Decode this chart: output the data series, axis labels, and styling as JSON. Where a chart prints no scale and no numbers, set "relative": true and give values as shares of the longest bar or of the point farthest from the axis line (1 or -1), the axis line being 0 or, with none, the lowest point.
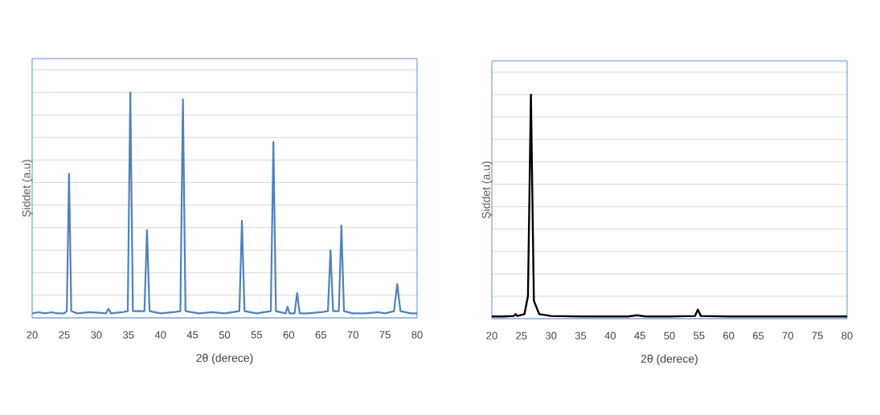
{
  "chart_data": [
    {
      "type": "line",
      "relative": true,
      "xlabel": "2θ  (derece)",
      "ylabel": "Şiddet (a.u)",
      "xlim": [
        20,
        80
      ],
      "xticks": [
        20,
        25,
        30,
        35,
        40,
        45,
        50,
        55,
        60,
        65,
        70,
        75,
        80
      ],
      "grid": "y",
      "tick_labels": "x",
      "x": [
        20,
        21,
        22,
        23,
        24,
        25,
        25.4,
        25.75,
        26.1,
        27,
        29,
        31.5,
        31.9,
        32.3,
        34,
        34.9,
        35.3,
        35.7,
        37.5,
        37.9,
        38.3,
        40,
        42,
        43.1,
        43.5,
        43.9,
        46,
        48,
        50,
        52.3,
        52.7,
        53.1,
        55,
        57.2,
        57.6,
        58,
        59.5,
        59.8,
        60.1,
        60.9,
        61.3,
        61.7,
        63,
        65,
        66.1,
        66.5,
        66.9,
        67.8,
        68.2,
        68.6,
        70,
        72,
        74,
        75,
        76.4,
        76.9,
        77.4,
        79,
        80
      ],
      "series": [
        {
          "color": "#4f81bd",
          "values": [
            0.02,
            0.025,
            0.02,
            0.025,
            0.02,
            0.02,
            0.03,
            0.64,
            0.03,
            0.02,
            0.025,
            0.02,
            0.04,
            0.02,
            0.025,
            0.03,
            1.0,
            0.03,
            0.03,
            0.39,
            0.03,
            0.02,
            0.025,
            0.03,
            0.97,
            0.03,
            0.02,
            0.025,
            0.02,
            0.03,
            0.43,
            0.03,
            0.02,
            0.03,
            0.78,
            0.03,
            0.02,
            0.05,
            0.02,
            0.02,
            0.11,
            0.02,
            0.02,
            0.025,
            0.03,
            0.3,
            0.03,
            0.03,
            0.41,
            0.03,
            0.02,
            0.02,
            0.025,
            0.02,
            0.03,
            0.15,
            0.03,
            0.02,
            0.02
          ]
        }
      ]
    },
    {
      "type": "line",
      "relative": true,
      "xlabel": "2θ (derece)",
      "ylabel": "Şiddet (a.u)",
      "xlim": [
        20,
        80
      ],
      "xticks": [
        20,
        25,
        30,
        35,
        40,
        45,
        50,
        55,
        60,
        65,
        70,
        75,
        80
      ],
      "grid": "y",
      "tick_labels": "x",
      "x": [
        20,
        22,
        23.7,
        24,
        24.3,
        25.5,
        26.1,
        26.6,
        27.1,
        28,
        30,
        35,
        40,
        43,
        44.5,
        46,
        50,
        54.3,
        54.8,
        55.3,
        60,
        70,
        78,
        80
      ],
      "series": [
        {
          "color": "#000000",
          "values": [
            0.01,
            0.01,
            0.012,
            0.02,
            0.012,
            0.02,
            0.1,
            1.0,
            0.08,
            0.02,
            0.012,
            0.01,
            0.01,
            0.01,
            0.015,
            0.01,
            0.01,
            0.012,
            0.04,
            0.012,
            0.01,
            0.01,
            0.01,
            0.01
          ]
        }
      ]
    }
  ]
}
